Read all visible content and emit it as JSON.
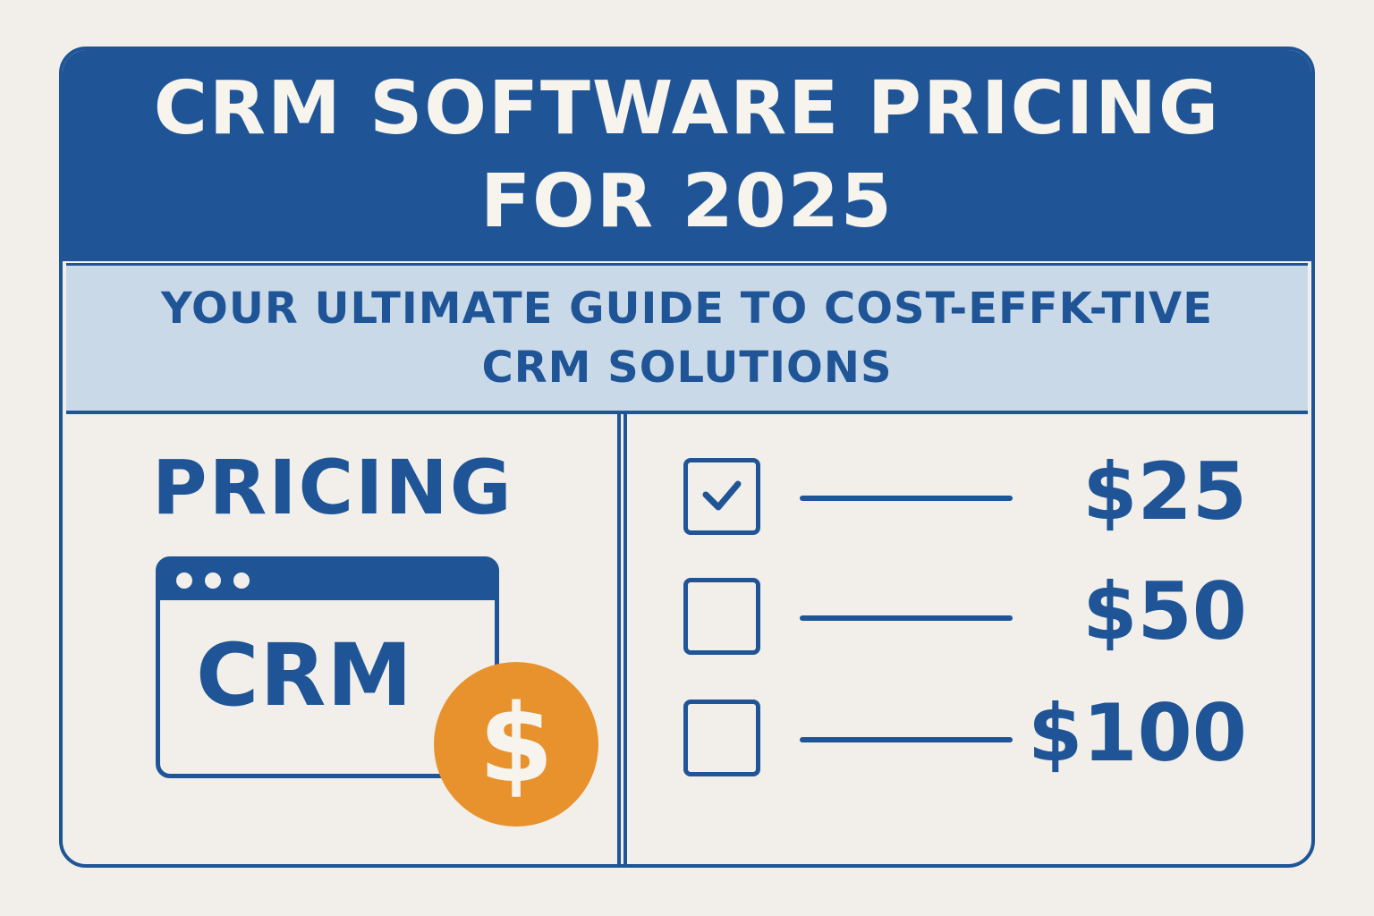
{
  "header": {
    "title": "CRM SOFTWARE PRICING FOR 2025"
  },
  "subtitle": "YOUR ULTIMATE GUIDE TO COST-EFFK-TIVE CRM SOLUTIONS",
  "left": {
    "heading": "PRICING",
    "browser_label": "CRM",
    "coin_symbol": "$"
  },
  "plans": [
    {
      "price": "$25",
      "checked": true
    },
    {
      "price": "$50",
      "checked": false
    },
    {
      "price": "$100",
      "checked": false
    }
  ],
  "colors": {
    "primary": "#1f5596",
    "light_band": "#c9d9e8",
    "accent": "#e8922e",
    "background": "#f2efea"
  }
}
